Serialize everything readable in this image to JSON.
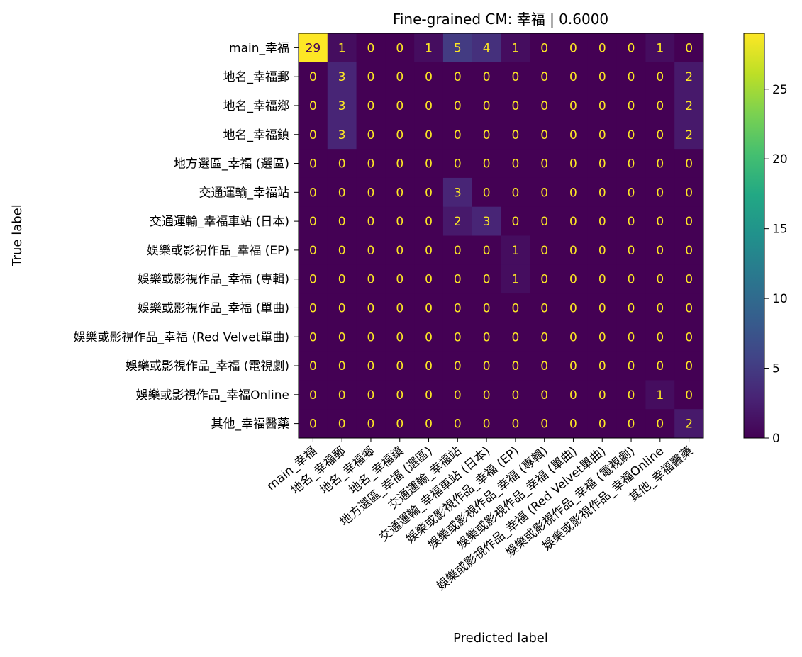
{
  "chart_data": {
    "type": "heatmap",
    "title": "Fine-grained CM: 幸福 | 0.6000",
    "xlabel": "Predicted label",
    "ylabel": "True label",
    "labels": [
      "main_幸福",
      "地名_幸福郵",
      "地名_幸福鄉",
      "地名_幸福鎮",
      "地方選區_幸福 (選區)",
      "交通運輸_幸福站",
      "交通運輸_幸福車站 (日本)",
      "娛樂或影視作品_幸福 (EP)",
      "娛樂或影視作品_幸福 (專輯)",
      "娛樂或影視作品_幸福 (單曲)",
      "娛樂或影視作品_幸福 (Red Velvet單曲)",
      "娛樂或影視作品_幸福 (電視劇)",
      "娛樂或影視作品_幸福Online",
      "其他_幸福醫藥"
    ],
    "matrix": [
      [
        29,
        1,
        0,
        0,
        1,
        5,
        4,
        1,
        0,
        0,
        0,
        0,
        1,
        0
      ],
      [
        0,
        3,
        0,
        0,
        0,
        0,
        0,
        0,
        0,
        0,
        0,
        0,
        0,
        2
      ],
      [
        0,
        3,
        0,
        0,
        0,
        0,
        0,
        0,
        0,
        0,
        0,
        0,
        0,
        2
      ],
      [
        0,
        3,
        0,
        0,
        0,
        0,
        0,
        0,
        0,
        0,
        0,
        0,
        0,
        2
      ],
      [
        0,
        0,
        0,
        0,
        0,
        0,
        0,
        0,
        0,
        0,
        0,
        0,
        0,
        0
      ],
      [
        0,
        0,
        0,
        0,
        0,
        3,
        0,
        0,
        0,
        0,
        0,
        0,
        0,
        0
      ],
      [
        0,
        0,
        0,
        0,
        0,
        2,
        3,
        0,
        0,
        0,
        0,
        0,
        0,
        0
      ],
      [
        0,
        0,
        0,
        0,
        0,
        0,
        0,
        1,
        0,
        0,
        0,
        0,
        0,
        0
      ],
      [
        0,
        0,
        0,
        0,
        0,
        0,
        0,
        1,
        0,
        0,
        0,
        0,
        0,
        0
      ],
      [
        0,
        0,
        0,
        0,
        0,
        0,
        0,
        0,
        0,
        0,
        0,
        0,
        0,
        0
      ],
      [
        0,
        0,
        0,
        0,
        0,
        0,
        0,
        0,
        0,
        0,
        0,
        0,
        0,
        0
      ],
      [
        0,
        0,
        0,
        0,
        0,
        0,
        0,
        0,
        0,
        0,
        0,
        0,
        0,
        0
      ],
      [
        0,
        0,
        0,
        0,
        0,
        0,
        0,
        0,
        0,
        0,
        0,
        0,
        1,
        0
      ],
      [
        0,
        0,
        0,
        0,
        0,
        0,
        0,
        0,
        0,
        0,
        0,
        0,
        0,
        2
      ]
    ],
    "vmin": 0,
    "vmax": 29,
    "colormap": "viridis",
    "colorbar_ticks": [
      0,
      5,
      10,
      15,
      20,
      25
    ],
    "text_color_low": "#fde725",
    "text_color_high": "#440154"
  }
}
